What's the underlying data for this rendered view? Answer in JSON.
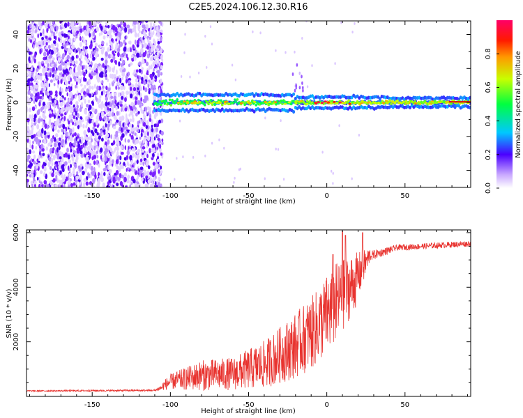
{
  "title": "C2E5.2024.106.12.30.R16",
  "colors": {
    "snr_line": "#e8332f",
    "scatter_noise": "#7a1fff",
    "frame": "#000000"
  },
  "chart_data": [
    {
      "type": "heatmap",
      "name": "spectrogram",
      "xlabel": "Height of straight line (km)",
      "ylabel": "Frequency (Hz)",
      "xlim": [
        -192,
        92
      ],
      "ylim": [
        -50,
        48
      ],
      "xticks": [
        -150,
        -100,
        -50,
        0,
        50
      ],
      "yticks": [
        -40,
        -20,
        0,
        20,
        40
      ],
      "description_regions": {
        "noise_band": {
          "x": [
            -192,
            -105
          ],
          "y": [
            -50,
            48
          ],
          "amplitude": 0.15
        },
        "signal_band": {
          "x": [
            -110,
            92
          ],
          "center_hz": 0,
          "amplitude_range": [
            0.3,
            1.0
          ]
        }
      },
      "colorbar": {
        "label": "Normalized spectral amplitude",
        "range": [
          0,
          1
        ],
        "ticks": [
          0.0,
          0.2,
          0.4,
          0.6,
          0.8
        ],
        "tick_labels": [
          "0.0",
          "0.2",
          "0.4",
          "0.6",
          "0.8"
        ],
        "stops": [
          "#ffffff",
          "#4400ff",
          "#00c8ff",
          "#00ff40",
          "#ffff00",
          "#ff2000",
          "#ff0080"
        ]
      }
    },
    {
      "type": "line",
      "name": "snr",
      "xlabel": "Height of straight line (km)",
      "ylabel": "SNR (10 * v/v)",
      "xlim": [
        -192,
        92
      ],
      "ylim": [
        0,
        6100
      ],
      "xticks": [
        -150,
        -100,
        -50,
        0,
        50
      ],
      "yticks": [
        2000,
        4000,
        6000
      ],
      "profile": [
        {
          "x": -192,
          "base": 200,
          "noise": 40
        },
        {
          "x": -110,
          "base": 220,
          "noise": 60
        },
        {
          "x": -100,
          "base": 450,
          "noise": 350
        },
        {
          "x": -80,
          "base": 600,
          "noise": 700
        },
        {
          "x": -60,
          "base": 650,
          "noise": 750
        },
        {
          "x": -40,
          "base": 900,
          "noise": 1100
        },
        {
          "x": -20,
          "base": 1500,
          "noise": 1500
        },
        {
          "x": -8,
          "base": 2000,
          "noise": 1700
        },
        {
          "x": 5,
          "base": 2900,
          "noise": 1900
        },
        {
          "x": 18,
          "base": 3900,
          "noise": 1300
        },
        {
          "x": 28,
          "base": 5150,
          "noise": 300
        },
        {
          "x": 45,
          "base": 5450,
          "noise": 180
        },
        {
          "x": 92,
          "base": 5600,
          "noise": 180
        }
      ],
      "peaks": [
        {
          "x": 10,
          "y": 6050
        },
        {
          "x": 23,
          "y": 6000
        },
        {
          "x": 12,
          "y": 5900
        },
        {
          "x": 4,
          "y": 5200
        }
      ]
    }
  ]
}
